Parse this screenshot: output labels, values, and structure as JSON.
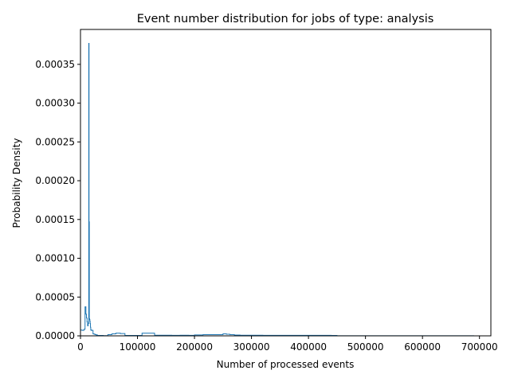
{
  "chart_data": {
    "type": "area",
    "title": "Event number distribution for jobs of type: analysis",
    "xlabel": "Number of processed events",
    "ylabel": "Probability Density",
    "xlim": [
      0,
      720000
    ],
    "ylim": [
      0,
      0.000395
    ],
    "x_ticks": [
      0,
      100000,
      200000,
      300000,
      400000,
      500000,
      600000,
      700000
    ],
    "x_tick_labels": [
      "0",
      "100000",
      "200000",
      "300000",
      "400000",
      "500000",
      "600000",
      "700000"
    ],
    "y_ticks": [
      0,
      5e-05,
      0.0001,
      0.00015,
      0.0002,
      0.00025,
      0.0003,
      0.00035
    ],
    "y_tick_labels": [
      "0.00000",
      "0.00005",
      "0.00010",
      "0.00015",
      "0.00020",
      "0.00025",
      "0.00030",
      "0.00035"
    ],
    "grid": false,
    "legend": "none",
    "series": [
      {
        "style": "step-histogram",
        "color": "#1f77b4",
        "bin_edges": [
          0,
          3000,
          6000,
          8000,
          9500,
          10500,
          11500,
          12500,
          13500,
          14500,
          15000,
          15500,
          16000,
          16500,
          17000,
          17500,
          18000,
          18500,
          19000,
          20000,
          21000,
          22000,
          24000,
          26000,
          28000,
          30000,
          35000,
          40000,
          48000,
          55000,
          62000,
          70000,
          78000,
          85000,
          100000,
          108000,
          118000,
          130000,
          145000,
          160000,
          175000,
          190000,
          200000,
          215000,
          230000,
          243000,
          250000,
          256000,
          262000,
          270000,
          280000,
          300000,
          320000,
          350000,
          380000,
          410000,
          440000,
          450000,
          500000,
          550000,
          600000,
          650000,
          690000
        ],
        "density": [
          7.5e-06,
          7e-06,
          8.5e-06,
          3.75e-05,
          2.8e-05,
          2.3e-05,
          1.8e-05,
          1.3e-05,
          1.6e-05,
          0.000377,
          0.000147,
          2.2e-05,
          2.1e-05,
          1.9e-05,
          1.6e-05,
          1.1e-05,
          8e-06,
          7e-06,
          7.5e-06,
          7e-06,
          7e-06,
          2.5e-06,
          2e-06,
          1.5e-06,
          1e-06,
          5e-07,
          5e-07,
          3e-07,
          1.5e-06,
          2.5e-06,
          3.5e-06,
          3e-06,
          5e-07,
          5e-07,
          5e-07,
          3.5e-06,
          3.5e-06,
          8e-07,
          8e-07,
          7e-07,
          8e-07,
          7e-07,
          1.2e-06,
          1.5e-06,
          1.5e-06,
          1.5e-06,
          2.5e-06,
          2e-06,
          1.5e-06,
          1e-06,
          8e-07,
          8e-07,
          7e-07,
          6e-07,
          6e-07,
          6e-07,
          5e-07,
          1e-07,
          1e-07,
          1e-07,
          1e-07,
          1e-07
        ]
      }
    ]
  }
}
